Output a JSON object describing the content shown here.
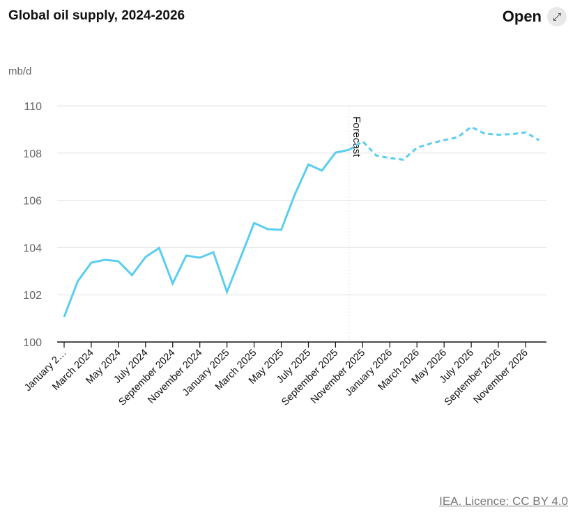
{
  "title": "Global oil supply, 2024-2026",
  "open_label": "Open",
  "open_icon": "expand-arrows-icon",
  "licence": "IEA. Licence: CC BY 4.0",
  "chart_data": {
    "type": "line",
    "ylabel": "mb/d",
    "ylim": [
      100,
      110
    ],
    "yticks": [
      100,
      102,
      104,
      106,
      108,
      110
    ],
    "grid": true,
    "color": "#5bcdf0",
    "forecast_label": "Forecast",
    "forecast_start": "October 2025",
    "x": [
      "January 2024",
      "February 2024",
      "March 2024",
      "April 2024",
      "May 2024",
      "June 2024",
      "July 2024",
      "August 2024",
      "September 2024",
      "October 2024",
      "November 2024",
      "December 2024",
      "January 2025",
      "February 2025",
      "March 2025",
      "April 2025",
      "May 2025",
      "June 2025",
      "July 2025",
      "August 2025",
      "September 2025",
      "October 2025",
      "November 2025",
      "December 2025",
      "January 2026",
      "February 2026",
      "March 2026",
      "April 2026",
      "May 2026",
      "June 2026",
      "July 2026",
      "August 2026",
      "September 2026",
      "October 2026",
      "November 2026",
      "December 2026"
    ],
    "xtick_labels": [
      "January 2…",
      "March 2024",
      "May 2024",
      "July 2024",
      "September 2024",
      "November 2024",
      "January 2025",
      "March 2025",
      "May 2025",
      "July 2025",
      "September 2025",
      "November 2025",
      "January 2026",
      "March 2026",
      "May 2026",
      "July 2026",
      "September 2026",
      "November 2026"
    ],
    "values": [
      101.06,
      102.57,
      103.36,
      103.48,
      103.42,
      102.83,
      103.6,
      103.98,
      102.48,
      103.66,
      103.57,
      103.8,
      102.12,
      103.57,
      105.04,
      104.78,
      104.75,
      106.25,
      107.52,
      107.26,
      108.02,
      108.14,
      108.5,
      107.9,
      107.79,
      107.72,
      108.23,
      108.41,
      108.55,
      108.67,
      109.11,
      108.82,
      108.78,
      108.8,
      108.88,
      108.55
    ]
  }
}
